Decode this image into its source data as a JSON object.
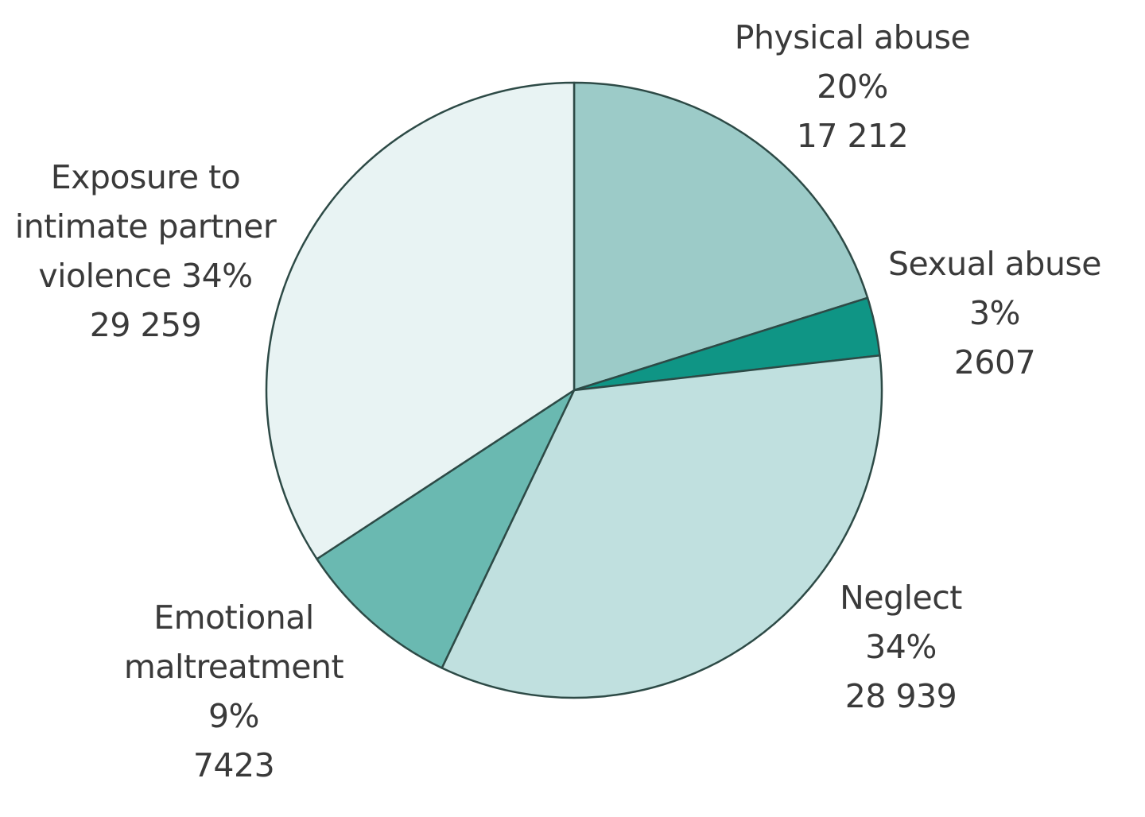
{
  "chart_data": {
    "type": "pie",
    "title": "",
    "start_angle_deg": 0,
    "direction": "clockwise",
    "slices": [
      {
        "name": "Physical abuse",
        "percent_label": "20%",
        "count_label": "17 212",
        "value": 17212,
        "color": "#9ccbc8"
      },
      {
        "name": "Sexual abuse",
        "percent_label": "3%",
        "count_label": "2607",
        "value": 2607,
        "color": "#0f9585"
      },
      {
        "name": "Neglect",
        "percent_label": "34%",
        "count_label": "28 939",
        "value": 28939,
        "color": "#c0e0df"
      },
      {
        "name": "Emotional maltreatment",
        "percent_label": "9%",
        "count_label": "7423",
        "value": 7423,
        "color": "#6ab9b1"
      },
      {
        "name": "Exposure to intimate partner violence",
        "percent_label": "34%",
        "count_label": "29 259",
        "value": 29259,
        "color": "#e8f3f3"
      }
    ],
    "stroke_color": "#2d4a46"
  },
  "labels": {
    "physical": {
      "line1": "Physical abuse",
      "line2": "20%",
      "line3": "17 212"
    },
    "sexual": {
      "line1": "Sexual abuse",
      "line2": "3%",
      "line3": "2607"
    },
    "neglect": {
      "line1": "Neglect",
      "line2": "34%",
      "line3": "28 939"
    },
    "emotional": {
      "line1": "Emotional",
      "line2": "maltreatment",
      "line3": "9%",
      "line4": "7423"
    },
    "exposure": {
      "line1": "Exposure to",
      "line2": "intimate partner",
      "line3": "violence 34%",
      "line4": "29 259"
    }
  }
}
